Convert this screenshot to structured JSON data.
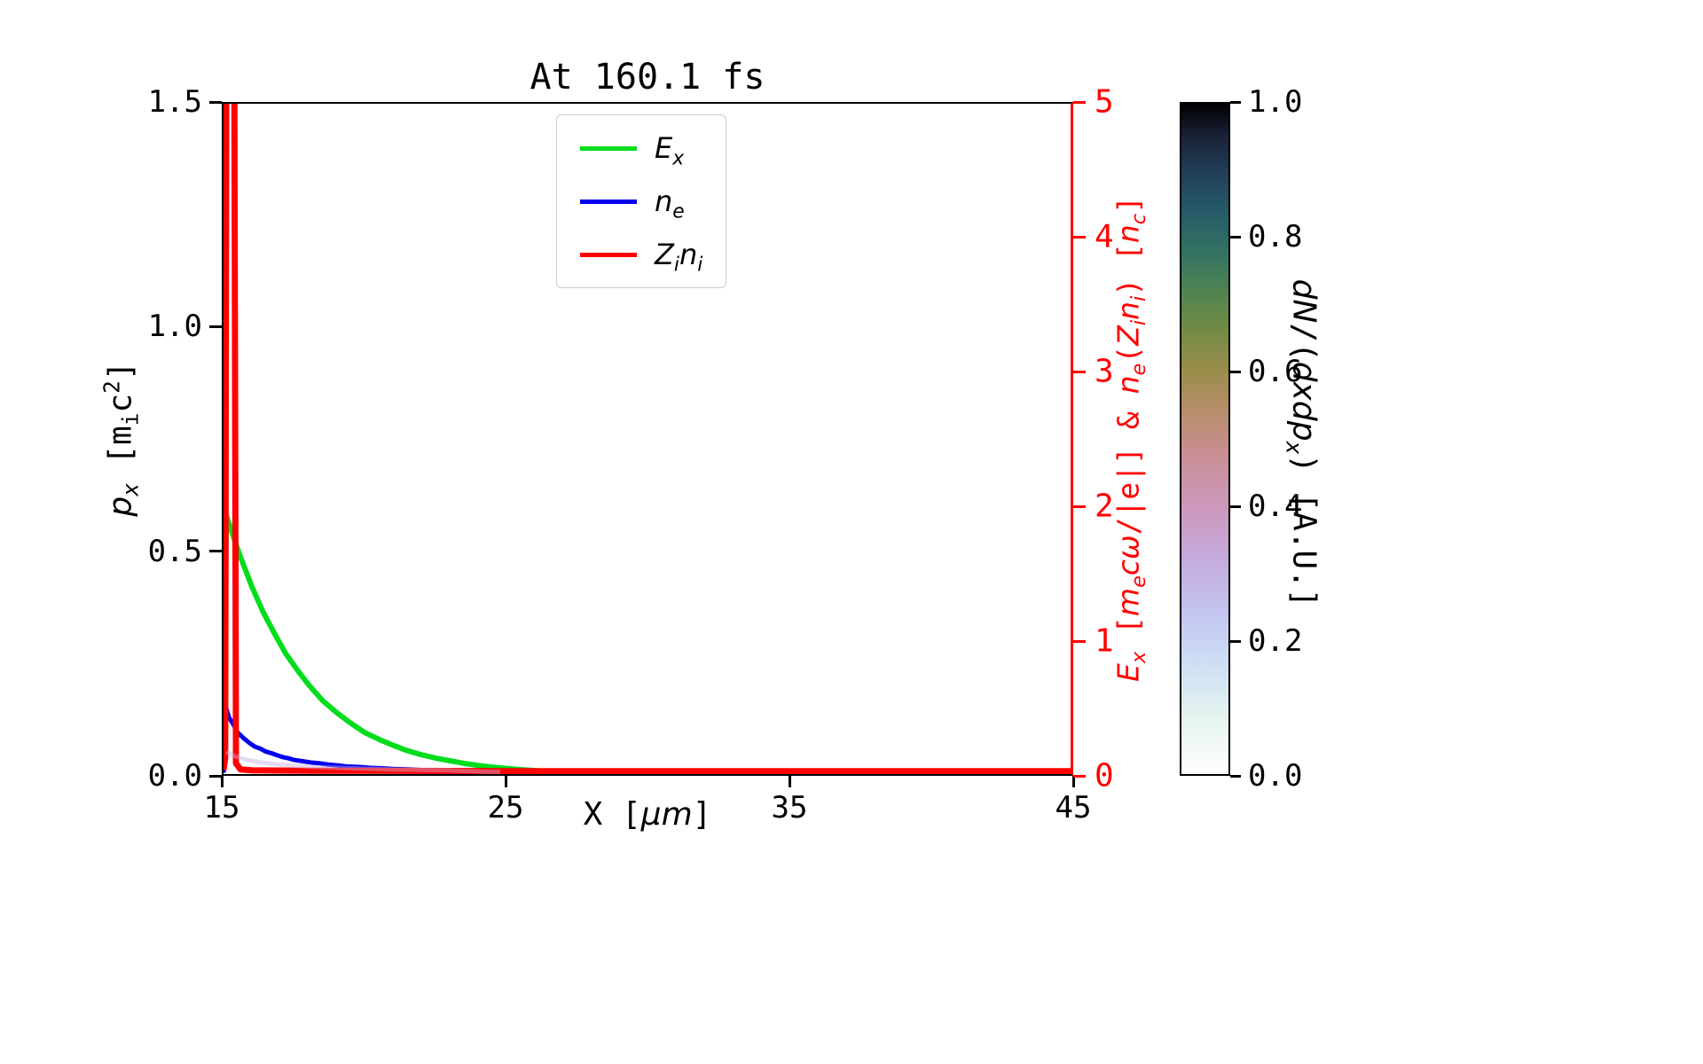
{
  "chart_data": {
    "type": "line",
    "title": "At 160.1 fs",
    "axes": {
      "x": {
        "label": "X [*μm*]",
        "min": 15,
        "max": 45,
        "ticks": [
          {
            "v": 15,
            "label": "15"
          },
          {
            "v": 25,
            "label": "25"
          },
          {
            "v": 35,
            "label": "35"
          },
          {
            "v": 45,
            "label": "45"
          }
        ]
      },
      "y_left": {
        "label": "*p_{x}* [m_{i}c^{2}]",
        "min": 0,
        "max": 1.5,
        "ticks": [
          {
            "v": 0,
            "label": "0.0"
          },
          {
            "v": 0.5,
            "label": "0.5"
          },
          {
            "v": 1,
            "label": "1.0"
          },
          {
            "v": 1.5,
            "label": "1.5"
          }
        ]
      },
      "y_right": {
        "label": "*E_{x}* [*m_{e}cω*/|e|] & *n_{e}*(*Z_{i}n_{i}*) [*n_{c}*]",
        "color": "#ff0000",
        "min": 0,
        "max": 5,
        "ticks": [
          {
            "v": 0,
            "label": "0"
          },
          {
            "v": 1,
            "label": "1"
          },
          {
            "v": 2,
            "label": "2"
          },
          {
            "v": 3,
            "label": "3"
          },
          {
            "v": 4,
            "label": "4"
          },
          {
            "v": 5,
            "label": "5"
          }
        ]
      }
    },
    "colorbar": {
      "label": "*dN*/(*dxdp_{x}*) [A.U.]",
      "min": 0,
      "max": 1,
      "ticks": [
        {
          "v": 0,
          "label": "0.0"
        },
        {
          "v": 0.2,
          "label": "0.2"
        },
        {
          "v": 0.4,
          "label": "0.4"
        },
        {
          "v": 0.6,
          "label": "0.6"
        },
        {
          "v": 0.8,
          "label": "0.8"
        },
        {
          "v": 1,
          "label": "1.0"
        }
      ],
      "colormap": "cubehelix_r",
      "stops": [
        {
          "p": 0.0,
          "c": "#ffffff"
        },
        {
          "p": 0.08,
          "c": "#e6f5ef"
        },
        {
          "p": 0.16,
          "c": "#cfe0f4"
        },
        {
          "p": 0.24,
          "c": "#c3c5f1"
        },
        {
          "p": 0.32,
          "c": "#c5aade"
        },
        {
          "p": 0.4,
          "c": "#cc98bb"
        },
        {
          "p": 0.48,
          "c": "#c88f92"
        },
        {
          "p": 0.54,
          "c": "#b88d6b"
        },
        {
          "p": 0.6,
          "c": "#9b8d4c"
        },
        {
          "p": 0.66,
          "c": "#758b44"
        },
        {
          "p": 0.72,
          "c": "#4f8351"
        },
        {
          "p": 0.78,
          "c": "#327263"
        },
        {
          "p": 0.84,
          "c": "#265a68"
        },
        {
          "p": 0.9,
          "c": "#223d57"
        },
        {
          "p": 0.95,
          "c": "#1b2238"
        },
        {
          "p": 1.0,
          "c": "#000000"
        }
      ]
    },
    "series": [
      {
        "name": "E_x",
        "legend": "*E_{x}*",
        "color": "#00dd1c",
        "width": 6,
        "axis": "right",
        "in_legend": true,
        "opacity": 1,
        "points": [
          [
            15.0,
            0.02
          ],
          [
            15.1,
            1.93
          ],
          [
            15.3,
            1.8
          ],
          [
            15.6,
            1.62
          ],
          [
            16.0,
            1.4
          ],
          [
            16.4,
            1.21
          ],
          [
            16.8,
            1.05
          ],
          [
            17.2,
            0.9
          ],
          [
            17.6,
            0.78
          ],
          [
            18.0,
            0.67
          ],
          [
            18.5,
            0.55
          ],
          [
            19.0,
            0.46
          ],
          [
            19.5,
            0.38
          ],
          [
            20.0,
            0.31
          ],
          [
            20.5,
            0.26
          ],
          [
            21.0,
            0.215
          ],
          [
            21.5,
            0.175
          ],
          [
            22.0,
            0.145
          ],
          [
            22.5,
            0.12
          ],
          [
            23.0,
            0.1
          ],
          [
            23.5,
            0.08
          ],
          [
            24.0,
            0.065
          ],
          [
            24.5,
            0.052
          ],
          [
            25.0,
            0.042
          ],
          [
            25.5,
            0.033
          ],
          [
            26.0,
            0.026
          ],
          [
            26.5,
            0.02
          ],
          [
            27.0,
            0.016
          ],
          [
            27.5,
            0.012
          ],
          [
            28.0,
            0.009
          ],
          [
            29.0,
            0.006
          ],
          [
            30.0,
            0.004
          ],
          [
            32.0,
            0.002
          ],
          [
            35.0,
            0.001
          ],
          [
            40.0,
            0.001
          ],
          [
            45.0,
            0.001
          ]
        ]
      },
      {
        "name": "n_e",
        "legend": "*n_{e}*",
        "color": "#0000ee",
        "width": 5,
        "axis": "right",
        "in_legend": true,
        "opacity": 1,
        "points": [
          [
            15.0,
            0.01
          ],
          [
            15.08,
            0.5
          ],
          [
            15.2,
            0.42
          ],
          [
            15.35,
            0.37
          ],
          [
            15.5,
            0.31
          ],
          [
            15.7,
            0.27
          ],
          [
            15.9,
            0.235
          ],
          [
            16.1,
            0.205
          ],
          [
            16.3,
            0.19
          ],
          [
            16.5,
            0.168
          ],
          [
            16.7,
            0.155
          ],
          [
            16.9,
            0.14
          ],
          [
            17.1,
            0.126
          ],
          [
            17.3,
            0.118
          ],
          [
            17.5,
            0.105
          ],
          [
            17.8,
            0.096
          ],
          [
            18.1,
            0.086
          ],
          [
            18.4,
            0.08
          ],
          [
            18.7,
            0.071
          ],
          [
            19.0,
            0.066
          ],
          [
            19.4,
            0.056
          ],
          [
            19.8,
            0.053
          ],
          [
            20.2,
            0.046
          ],
          [
            20.6,
            0.043
          ],
          [
            21.0,
            0.038
          ],
          [
            21.5,
            0.035
          ],
          [
            22.0,
            0.03
          ],
          [
            22.5,
            0.028
          ],
          [
            23.0,
            0.024
          ],
          [
            23.5,
            0.022
          ],
          [
            24.0,
            0.02
          ],
          [
            25.0,
            0.017
          ],
          [
            26.0,
            0.014
          ],
          [
            27.0,
            0.012
          ],
          [
            28.0,
            0.01
          ],
          [
            30.0,
            0.008
          ],
          [
            32.0,
            0.007
          ],
          [
            35.0,
            0.006
          ],
          [
            40.0,
            0.005
          ],
          [
            45.0,
            0.005
          ]
        ]
      },
      {
        "name": "Z_i_n_i",
        "legend": "*Z_{i}n_{i}*",
        "color": "#ff0000",
        "width": 7,
        "axis": "right",
        "in_legend": true,
        "opacity": 1,
        "points": [
          [
            15.0,
            0.03
          ],
          [
            15.06,
            0.12
          ],
          [
            15.1,
            5.4
          ],
          [
            15.38,
            5.4
          ],
          [
            15.44,
            0.08
          ],
          [
            15.6,
            0.035
          ],
          [
            16.0,
            0.028
          ],
          [
            18.0,
            0.025
          ],
          [
            20.0,
            0.025
          ],
          [
            25.0,
            0.022
          ],
          [
            30.0,
            0.022
          ],
          [
            35.0,
            0.022
          ],
          [
            40.0,
            0.022
          ],
          [
            45.0,
            0.022
          ]
        ]
      },
      {
        "name": "phase_space_density",
        "legend": "",
        "color": "#c8b0e0",
        "width": 5,
        "axis": "left",
        "in_legend": false,
        "opacity": 0.45,
        "points": [
          [
            15.1,
            0.05
          ],
          [
            15.4,
            0.04
          ],
          [
            15.8,
            0.032
          ],
          [
            16.3,
            0.026
          ],
          [
            16.9,
            0.022
          ],
          [
            17.5,
            0.019
          ],
          [
            18.2,
            0.016
          ],
          [
            19.0,
            0.014
          ],
          [
            20.0,
            0.012
          ],
          [
            21.0,
            0.01
          ],
          [
            22.0,
            0.009
          ],
          [
            23.0,
            0.008
          ],
          [
            24.0,
            0.006
          ],
          [
            24.8,
            0.005
          ]
        ]
      }
    ]
  }
}
